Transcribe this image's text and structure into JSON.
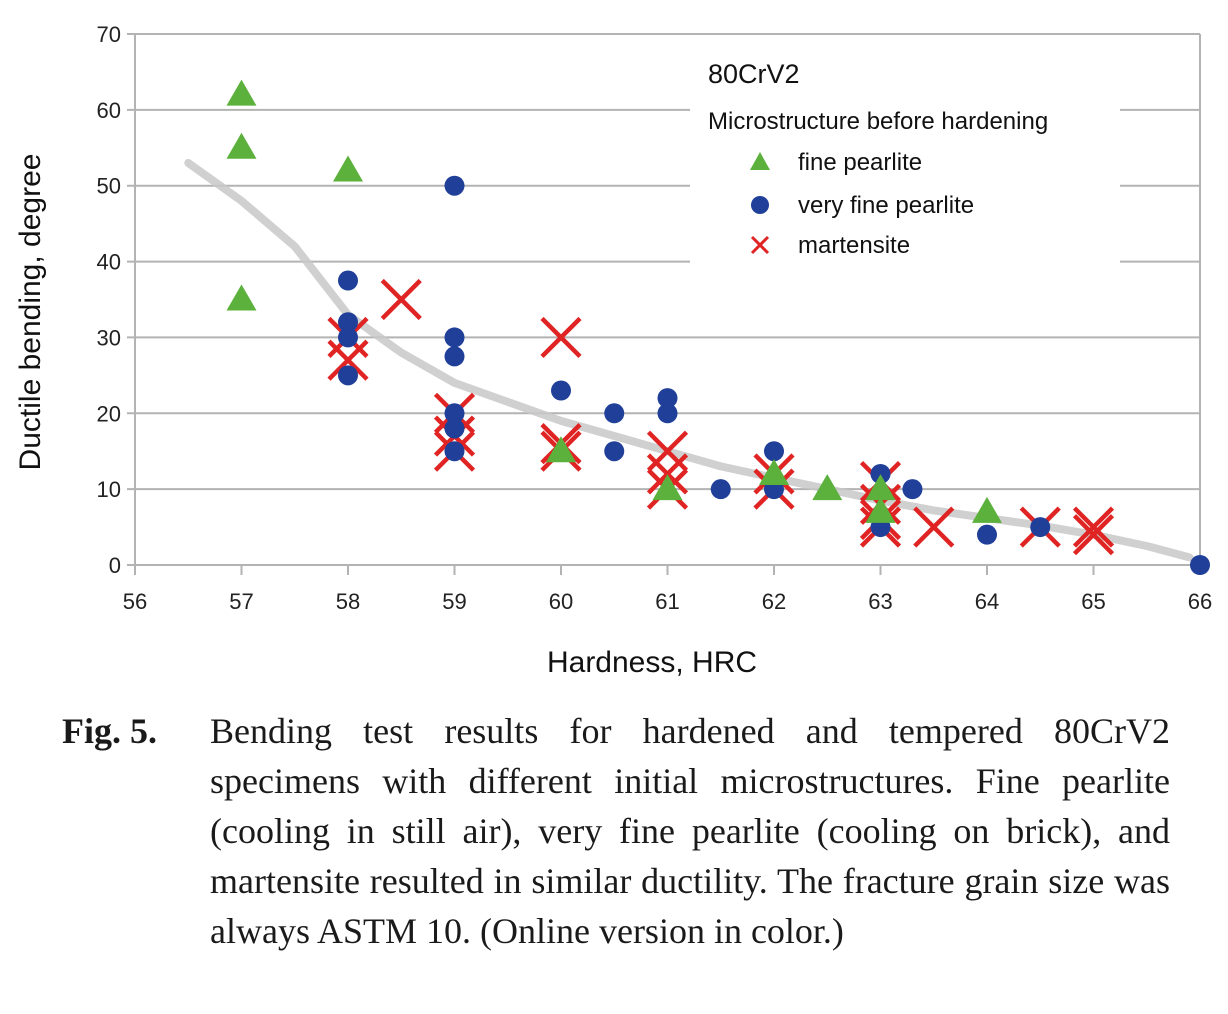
{
  "chart_data": {
    "type": "scatter",
    "title": "80CrV2",
    "xlabel": "Hardness, HRC",
    "ylabel": "Ductile bending, degree",
    "xlim": [
      56,
      66
    ],
    "ylim": [
      0,
      70
    ],
    "xticks": [
      56,
      57,
      58,
      59,
      60,
      61,
      62,
      63,
      64,
      65,
      66
    ],
    "yticks": [
      0,
      10,
      20,
      30,
      40,
      50,
      60,
      70
    ],
    "grid": "horizontal",
    "legend": {
      "placement": "top-right",
      "title": "Microstructure before hardening",
      "entries": [
        "fine pearlite",
        "very fine pearlite",
        "martensite"
      ]
    },
    "series": [
      {
        "name": "fine pearlite",
        "marker": "triangle",
        "color": "#5bb13b",
        "points": [
          [
            57,
            62
          ],
          [
            57,
            55
          ],
          [
            57,
            35
          ],
          [
            58,
            52
          ],
          [
            60,
            15
          ],
          [
            61,
            10
          ],
          [
            62,
            12
          ],
          [
            62.5,
            10
          ],
          [
            63,
            10
          ],
          [
            63,
            7
          ],
          [
            64,
            7
          ]
        ]
      },
      {
        "name": "very fine pearlite",
        "marker": "circle",
        "color": "#1f3f99",
        "points": [
          [
            58,
            37.5
          ],
          [
            58,
            32
          ],
          [
            58,
            30
          ],
          [
            58,
            25
          ],
          [
            59,
            50
          ],
          [
            59,
            30
          ],
          [
            59,
            27.5
          ],
          [
            59,
            20
          ],
          [
            59,
            18
          ],
          [
            59,
            15
          ],
          [
            60,
            23
          ],
          [
            60.5,
            20
          ],
          [
            60.5,
            15
          ],
          [
            61,
            22
          ],
          [
            61,
            20
          ],
          [
            61.5,
            10
          ],
          [
            62,
            15
          ],
          [
            62,
            10
          ],
          [
            63,
            12
          ],
          [
            63,
            5
          ],
          [
            63.3,
            10
          ],
          [
            64,
            4
          ],
          [
            64.5,
            5
          ],
          [
            66,
            0
          ]
        ]
      },
      {
        "name": "martensite",
        "marker": "x",
        "color": "#e02424",
        "points": [
          [
            58,
            30
          ],
          [
            58,
            27
          ],
          [
            58.5,
            35
          ],
          [
            59,
            20
          ],
          [
            59,
            17
          ],
          [
            59,
            15
          ],
          [
            60,
            30
          ],
          [
            60,
            16
          ],
          [
            60,
            15
          ],
          [
            61,
            15
          ],
          [
            61,
            12
          ],
          [
            61,
            10
          ],
          [
            62,
            12
          ],
          [
            62,
            10
          ],
          [
            63,
            11
          ],
          [
            63,
            8
          ],
          [
            63,
            6
          ],
          [
            63,
            5
          ],
          [
            63.5,
            5
          ],
          [
            64.5,
            5
          ],
          [
            65,
            5
          ],
          [
            65,
            4
          ]
        ]
      },
      {
        "name": "trend",
        "type": "line",
        "color": "#c8c8c8",
        "points": [
          [
            56.5,
            53
          ],
          [
            57,
            48
          ],
          [
            57.5,
            42
          ],
          [
            58,
            33
          ],
          [
            58.5,
            28
          ],
          [
            59,
            24
          ],
          [
            59.5,
            21.5
          ],
          [
            60,
            19
          ],
          [
            60.5,
            17
          ],
          [
            61,
            15
          ],
          [
            61.5,
            13
          ],
          [
            62,
            11.5
          ],
          [
            62.5,
            10
          ],
          [
            63,
            8.5
          ],
          [
            63.5,
            7.2
          ],
          [
            64,
            6.2
          ],
          [
            64.5,
            5.2
          ],
          [
            65,
            4
          ],
          [
            65.5,
            2.5
          ],
          [
            65.9,
            1
          ]
        ]
      }
    ]
  },
  "caption": {
    "label": "Fig. 5.",
    "text": "Bending test results for hardened and tempered 80CrV2 specimens with different initial microstructures. Fine pearlite (cooling in still air), very fine pearlite (cooling on brick), and martensite resulted in similar ductility. The fracture grain size was always ASTM 10. (Online version in color.)"
  }
}
